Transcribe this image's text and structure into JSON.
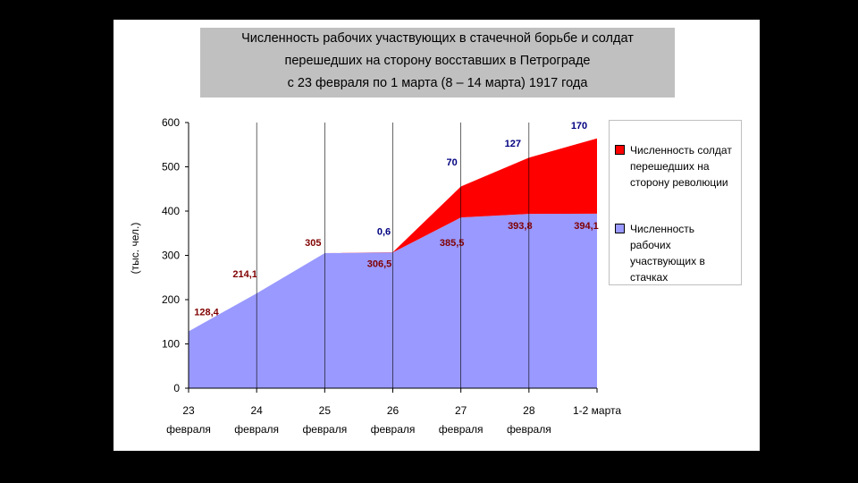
{
  "chart_data": {
    "type": "area",
    "title_lines": [
      "Численность рабочих участвующих в стачечной борьбе и солдат",
      "перешедших на сторону восставших в Петрограде",
      "с 23 февраля по 1 марта  (8 – 14 марта) 1917 года"
    ],
    "ylabel": "(тыс. чел.)",
    "ylim": [
      0,
      600
    ],
    "yticks": [
      "0",
      "100",
      "200",
      "300",
      "400",
      "500",
      "600"
    ],
    "x_labels": [
      [
        "23",
        "февраля"
      ],
      [
        "24",
        "февраля"
      ],
      [
        "25",
        "февраля"
      ],
      [
        "26",
        "февраля"
      ],
      [
        "27",
        "февраля"
      ],
      [
        "28",
        "февраля"
      ],
      [
        "1-2 марта",
        ""
      ]
    ],
    "series": [
      {
        "name": "Численность рабочих участвующих в стачках",
        "color": "#9999ff",
        "values": [
          128.4,
          214.1,
          305,
          306.5,
          385.5,
          393.8,
          394.1
        ],
        "labels": [
          "128,4",
          "214,1",
          "305",
          "306,5",
          "385,5",
          "393,8",
          "394,1"
        ]
      },
      {
        "name": "Численность солдат перешедших на сторону революции",
        "color": "#ff0000",
        "values": [
          0,
          0,
          0,
          0.6,
          70,
          127,
          170
        ],
        "labels": [
          "",
          "",
          "",
          "0,6",
          "70",
          "127",
          "170"
        ]
      }
    ],
    "grid": "vertical",
    "legend_position": "right"
  },
  "legend": {
    "soldiers": "Численность солдат перешедших на сторону революции",
    "workers": "Численность рабочих участвующих в стачках"
  },
  "colors": {
    "workers": "#9999ff",
    "soldiers": "#ff0000",
    "worker_label": "#800000",
    "soldier_label": "#000080"
  }
}
